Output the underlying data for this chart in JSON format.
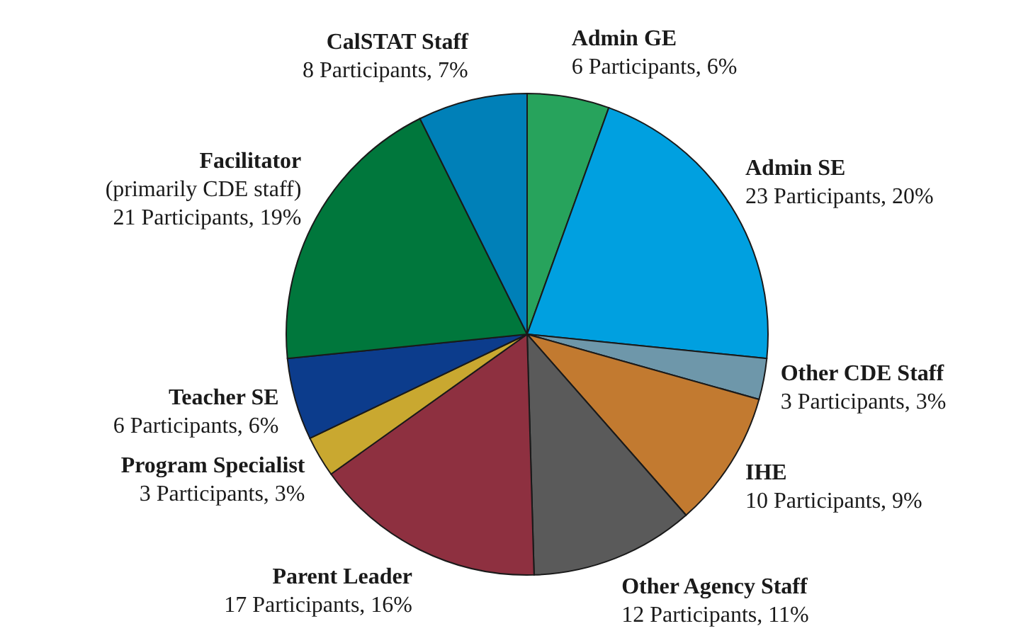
{
  "chart_data": {
    "type": "pie",
    "categories": [
      "Admin GE",
      "Admin SE",
      "Other CDE Staff",
      "IHE",
      "Other Agency Staff",
      "Parent Leader",
      "Program Specialist",
      "Teacher SE",
      "Facilitator\n(primarily CDE staff)",
      "CalSTAT Staff"
    ],
    "values": [
      6,
      23,
      3,
      10,
      12,
      17,
      3,
      6,
      21,
      8
    ],
    "value_labels": [
      "6 Participants, 6%",
      "23 Participants, 20%",
      "3 Participants, 3%",
      "10 Participants, 9%",
      "12 Participants, 11%",
      "17 Participants, 16%",
      "3 Participants, 3%",
      "6 Participants, 6%",
      "21 Participants, 19%",
      "8 Participants, 7%"
    ],
    "colors": [
      "#27a35c",
      "#00a0e0",
      "#6e97aa",
      "#c27a30",
      "#5a5a5a",
      "#8e3040",
      "#c9a830",
      "#0c3c8c",
      "#00773c",
      "#0080b8"
    ]
  }
}
